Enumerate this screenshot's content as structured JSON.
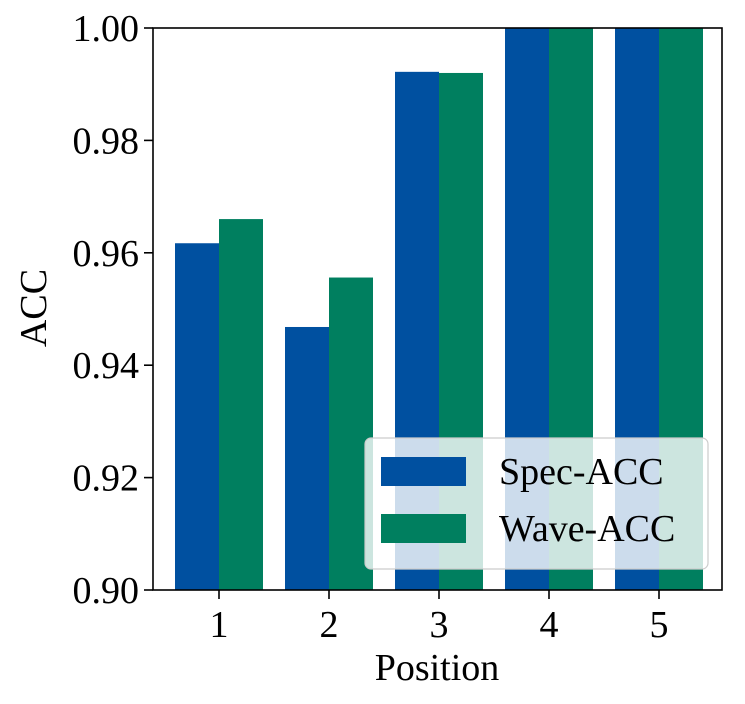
{
  "chart_data": {
    "type": "bar",
    "categories": [
      "1",
      "2",
      "3",
      "4",
      "5"
    ],
    "series": [
      {
        "name": "Spec-ACC",
        "values": [
          0.9617,
          0.9468,
          0.9922,
          1.0,
          1.0
        ]
      },
      {
        "name": "Wave-ACC",
        "values": [
          0.966,
          0.9556,
          0.992,
          1.0,
          1.0
        ]
      }
    ],
    "xlabel": "Position",
    "ylabel": "ACC",
    "ylim": [
      0.9,
      1.0
    ],
    "yticks": [
      "0.90",
      "0.92",
      "0.94",
      "0.96",
      "0.98",
      "1.00"
    ],
    "grid": false,
    "legend_position": "lower-right",
    "colors": {
      "Spec-ACC": "#0050a0",
      "Wave-ACC": "#007f5f"
    }
  }
}
